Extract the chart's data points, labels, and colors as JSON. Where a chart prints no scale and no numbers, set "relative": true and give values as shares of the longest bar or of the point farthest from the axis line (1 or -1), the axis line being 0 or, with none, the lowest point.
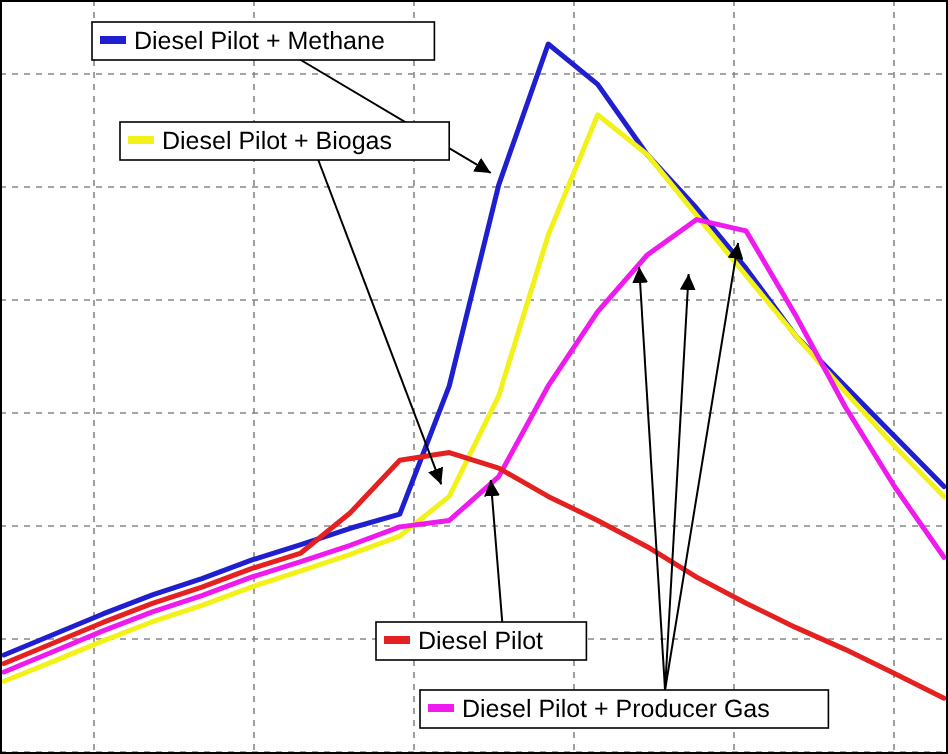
{
  "chart_data": {
    "type": "line",
    "relative": true,
    "grid": true,
    "legend": "top left",
    "categories": [
      null,
      null,
      null,
      null,
      null,
      null,
      null,
      null,
      null,
      null,
      null,
      null,
      null,
      null,
      null,
      null,
      null,
      null,
      null,
      null
    ],
    "series": [
      {
        "name": "Diesel Pilot + Methane",
        "color": "#1f1fd0",
        "values": [
          0.137,
          0.166,
          0.195,
          0.222,
          0.245,
          0.271,
          0.293,
          0.316,
          0.336,
          0.517,
          0.801,
          1.0,
          0.943,
          0.844,
          0.768,
          0.683,
          0.588,
          0.517,
          0.446,
          0.375
        ]
      },
      {
        "name": "Diesel Pilot + Biogas",
        "color": "#f2f21a",
        "values": [
          0.1,
          0.128,
          0.157,
          0.184,
          0.207,
          0.233,
          0.256,
          0.279,
          0.305,
          0.361,
          0.503,
          0.73,
          0.9,
          0.844,
          0.758,
          0.673,
          0.588,
          0.509,
          0.432,
          0.361
        ]
      },
      {
        "name": "Diesel Pilot + Producer Gas",
        "color": "#ee1aee",
        "values": [
          0.113,
          0.142,
          0.171,
          0.198,
          0.221,
          0.247,
          0.269,
          0.292,
          0.318,
          0.327,
          0.389,
          0.517,
          0.622,
          0.702,
          0.752,
          0.736,
          0.617,
          0.488,
          0.375,
          0.275
        ]
      },
      {
        "name": "Diesel Pilot",
        "color": "#e52020",
        "values": [
          0.125,
          0.154,
          0.183,
          0.21,
          0.233,
          0.259,
          0.281,
          0.338,
          0.412,
          0.423,
          0.401,
          0.361,
          0.327,
          0.29,
          0.247,
          0.21,
          0.176,
          0.145,
          0.111,
          0.076
        ]
      }
    ]
  }
}
